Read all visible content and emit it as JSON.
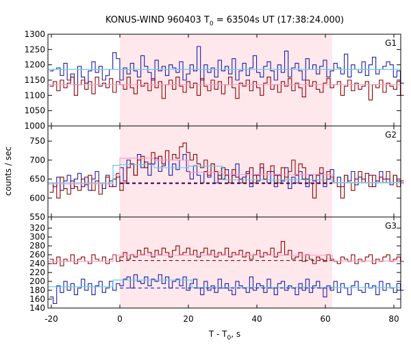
{
  "chart_data": {
    "type": "line",
    "title": "KONUS-WIND 960403 T",
    "title_sub": "0",
    "title_rest": " = 63504s UT (17:38:24.000)",
    "xlabel": "T - T",
    "xlabel_sub": "0",
    "xlabel_rest": ", s",
    "ylabel": "counts / sec",
    "xlim": [
      -21,
      82
    ],
    "x_ticks": [
      -20,
      0,
      20,
      40,
      60,
      80
    ],
    "x_tick_labels": [
      "-20",
      "0",
      "20",
      "40",
      "60",
      "80"
    ],
    "highlight_interval": [
      0,
      62
    ],
    "colors": {
      "background_highlight": "#ffe8ec",
      "series_a": "#8b0000",
      "series_b": "#1a1aa8",
      "fit_a": "#ff99cc",
      "fit_b": "#66ccee"
    },
    "panels": [
      {
        "label": "G1",
        "ylim": [
          1000,
          1300
        ],
        "y_ticks": [
          1000,
          1050,
          1100,
          1150,
          1200,
          1250,
          1300
        ],
        "y_tick_labels": [
          "1000",
          "1050",
          "1100",
          "1150",
          "1200",
          "1250",
          "1300"
        ],
        "background_a": null,
        "background_b": null,
        "fit_a": [
          {
            "x0": -21,
            "x1": 82,
            "y": 1135
          }
        ],
        "fit_b": [
          {
            "x0": -21,
            "x1": 82,
            "y": 1185
          }
        ],
        "series": [
          {
            "name": "",
            "color_key": "series_b",
            "x0": -20.5,
            "dx": 1.024,
            "values": [
              1180,
              1185,
              1190,
              1165,
              1205,
              1150,
              1170,
              1135,
              1195,
              1160,
              1140,
              1180,
              1210,
              1175,
              1195,
              1150,
              1165,
              1185,
              1240,
              1220,
              1150,
              1190,
              1170,
              1205,
              1180,
              1160,
              1230,
              1195,
              1175,
              1150,
              1215,
              1180,
              1195,
              1165,
              1200,
              1190,
              1175,
              1210,
              1150,
              1170,
              1200,
              1180,
              1260,
              1150,
              1200,
              1175,
              1190,
              1160,
              1215,
              1180,
              1195,
              1170,
              1220,
              1150,
              1180,
              1205,
              1165,
              1190,
              1230,
              1175,
              1160,
              1195,
              1210,
              1180,
              1150,
              1200,
              1175,
              1245,
              1160,
              1190,
              1205,
              1180,
              1150,
              1220,
              1185,
              1200,
              1170,
              1195,
              1215,
              1160,
              1180,
              1205,
              1190,
              1170,
              1235,
              1160,
              1200,
              1185,
              1175,
              1210,
              1165,
              1200,
              1225,
              1170,
              1185,
              1195,
              1210,
              1200,
              1160,
              1180,
              1140
            ]
          },
          {
            "name": "",
            "color_key": "series_a",
            "x0": -20.5,
            "dx": 1.024,
            "values": [
              1130,
              1145,
              1115,
              1150,
              1125,
              1140,
              1160,
              1100,
              1135,
              1150,
              1120,
              1145,
              1105,
              1160,
              1130,
              1140,
              1125,
              1155,
              1110,
              1145,
              1135,
              1120,
              1160,
              1125,
              1105,
              1150,
              1130,
              1140,
              1115,
              1155,
              1125,
              1145,
              1090,
              1135,
              1150,
              1120,
              1160,
              1130,
              1110,
              1145,
              1125,
              1140,
              1100,
              1155,
              1130,
              1115,
              1150,
              1120,
              1145,
              1105,
              1135,
              1160,
              1125,
              1090,
              1140,
              1130,
              1150,
              1115,
              1145,
              1125,
              1100,
              1140,
              1160,
              1120,
              1135,
              1110,
              1145,
              1130,
              1155,
              1115,
              1140,
              1125,
              1095,
              1150,
              1130,
              1145,
              1120,
              1110,
              1140,
              1155,
              1125,
              1135,
              1145,
              1100,
              1130,
              1150,
              1115,
              1140,
              1120,
              1130,
              1145,
              1085,
              1135,
              1125,
              1150,
              1110,
              1140,
              1130,
              1120,
              1145,
              1100
            ]
          }
        ]
      },
      {
        "label": "G2",
        "ylim": [
          550,
          790
        ],
        "y_ticks": [
          550,
          600,
          650,
          700,
          750
        ],
        "y_tick_labels": [
          "550",
          "600",
          "650",
          "700",
          "750"
        ],
        "background_a": 640,
        "background_b": 638,
        "fit_a": [
          {
            "x0": -21,
            "x1": -2,
            "y": 637
          },
          {
            "x0": -2,
            "x1": 0,
            "y": 660
          },
          {
            "x0": 0,
            "x1": 10,
            "y": 705
          },
          {
            "x0": 10,
            "x1": 20,
            "y": 700
          },
          {
            "x0": 20,
            "x1": 30,
            "y": 668
          },
          {
            "x0": 30,
            "x1": 62,
            "y": 662
          },
          {
            "x0": 62,
            "x1": 82,
            "y": 641
          }
        ],
        "fit_b": [
          {
            "x0": -21,
            "x1": -2,
            "y": 640
          },
          {
            "x0": -2,
            "x1": 0,
            "y": 686
          },
          {
            "x0": 0,
            "x1": 10,
            "y": 688
          },
          {
            "x0": 10,
            "x1": 20,
            "y": 680
          },
          {
            "x0": 20,
            "x1": 30,
            "y": 684
          },
          {
            "x0": 30,
            "x1": 62,
            "y": 648
          },
          {
            "x0": 62,
            "x1": 82,
            "y": 640
          }
        ],
        "series": [
          {
            "name": "",
            "color_key": "series_b",
            "x0": -20.5,
            "dx": 1.024,
            "values": [
              640,
              630,
              655,
              620,
              645,
              660,
              625,
              650,
              665,
              630,
              655,
              620,
              650,
              670,
              640,
              625,
              660,
              645,
              630,
              655,
              680,
              645,
              700,
              690,
              660,
              715,
              680,
              695,
              660,
              690,
              705,
              670,
              685,
              700,
              660,
              690,
              675,
              700,
              715,
              670,
              650,
              685,
              660,
              640,
              670,
              655,
              690,
              640,
              660,
              650,
              675,
              640,
              660,
              690,
              640,
              655,
              670,
              630,
              660,
              645,
              680,
              650,
              640,
              670,
              630,
              660,
              645,
              680,
              625,
              655,
              640,
              670,
              650,
              630,
              660,
              645,
              640,
              665,
              630,
              650,
              675,
              640,
              655,
              630,
              660,
              645,
              670,
              635,
              655,
              650,
              640,
              660,
              630,
              645,
              670,
              640,
              650,
              635,
              660,
              645,
              640
            ]
          },
          {
            "name": "",
            "color_key": "series_a",
            "x0": -20.5,
            "dx": 1.024,
            "values": [
              615,
              640,
              600,
              655,
              625,
              610,
              645,
              630,
              620,
              650,
              635,
              660,
              620,
              645,
              610,
              640,
              655,
              630,
              650,
              665,
              620,
              640,
              680,
              690,
              660,
              700,
              710,
              680,
              690,
              720,
              700,
              710,
              690,
              725,
              700,
              715,
              705,
              735,
              745,
              720,
              700,
              715,
              690,
              680,
              700,
              660,
              690,
              670,
              650,
              680,
              660,
              640,
              675,
              655,
              650,
              640,
              665,
              680,
              640,
              660,
              690,
              650,
              670,
              685,
              660,
              640,
              680,
              655,
              670,
              700,
              660,
              690,
              680,
              650,
              640,
              600,
              660,
              680,
              640,
              670,
              655,
              640,
              630,
              600,
              660,
              640,
              620,
              650,
              670,
              640,
              665,
              630,
              660,
              640,
              655,
              650,
              670,
              640,
              660,
              630,
              645
            ]
          }
        ]
      },
      {
        "label": "G3",
        "ylim": [
          140,
          345
        ],
        "y_ticks": [
          140,
          160,
          180,
          200,
          220,
          240,
          260,
          280,
          300,
          320
        ],
        "y_tick_labels": [
          "140",
          "160",
          "180",
          "200",
          "220",
          "240",
          "260",
          "280",
          "300",
          "320"
        ],
        "background_a": 247,
        "background_b": 185,
        "fit_a": [
          {
            "x0": -21,
            "x1": -2,
            "y": 245
          },
          {
            "x0": -2,
            "x1": 62,
            "y": 259
          },
          {
            "x0": 62,
            "x1": 82,
            "y": 246
          }
        ],
        "fit_b": [
          {
            "x0": -21,
            "x1": -2,
            "y": 188
          },
          {
            "x0": -2,
            "x1": 0,
            "y": 203
          },
          {
            "x0": 0,
            "x1": 21,
            "y": 203
          },
          {
            "x0": 21,
            "x1": 62,
            "y": 186
          },
          {
            "x0": 62,
            "x1": 82,
            "y": 186
          }
        ],
        "series": [
          {
            "name": "",
            "color_key": "series_b",
            "x0": -20.5,
            "dx": 1.024,
            "values": [
              165,
              150,
              190,
              175,
              200,
              180,
              195,
              170,
              185,
              205,
              180,
              195,
              170,
              190,
              200,
              175,
              185,
              200,
              180,
              195,
              190,
              205,
              210,
              185,
              215,
              200,
              195,
              210,
              190,
              205,
              200,
              215,
              195,
              210,
              185,
              200,
              205,
              190,
              210,
              180,
              195,
              205,
              185,
              170,
              200,
              180,
              190,
              175,
              205,
              185,
              195,
              180,
              170,
              200,
              190,
              185,
              175,
              210,
              180,
              195,
              190,
              175,
              205,
              185,
              170,
              195,
              200,
              180,
              190,
              185,
              170,
              195,
              180,
              205,
              175,
              190,
              200,
              185,
              165,
              190,
              180,
              200,
              175,
              195,
              185,
              170,
              190,
              200,
              180,
              175,
              195,
              185,
              190,
              170,
              200,
              180,
              195,
              185,
              175,
              195,
              180
            ]
          },
          {
            "name": "",
            "color_key": "series_a",
            "x0": -20.5,
            "dx": 1.024,
            "values": [
              250,
              240,
              255,
              235,
              250,
              245,
              260,
              240,
              250,
              255,
              245,
              240,
              260,
              250,
              245,
              255,
              240,
              250,
              260,
              245,
              255,
              265,
              250,
              260,
              255,
              270,
              260,
              275,
              265,
              255,
              270,
              260,
              275,
              265,
              255,
              270,
              280,
              260,
              265,
              275,
              260,
              270,
              255,
              265,
              275,
              260,
              270,
              255,
              265,
              260,
              275,
              255,
              265,
              260,
              270,
              255,
              265,
              250,
              260,
              270,
              255,
              265,
              260,
              275,
              255,
              265,
              290,
              260,
              270,
              250,
              255,
              265,
              245,
              260,
              250,
              240,
              255,
              250,
              245,
              260,
              250,
              245,
              240,
              255,
              250,
              245,
              260,
              240,
              250,
              245,
              255,
              260,
              240,
              250,
              245,
              255,
              260,
              245,
              250,
              255,
              245
            ]
          }
        ]
      }
    ]
  }
}
